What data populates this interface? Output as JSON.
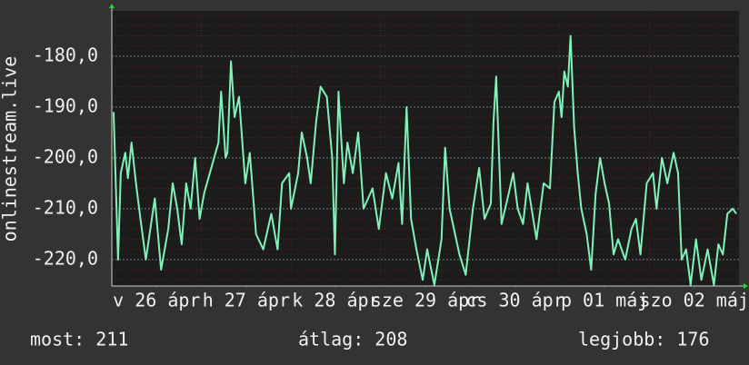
{
  "chart_data": {
    "type": "line",
    "y_label": "onlinestream.live",
    "color": "#80f2b8",
    "xlim": [
      0,
      7
    ],
    "xticks": [
      {
        "value": 0.5,
        "label": "v 26 ápr"
      },
      {
        "value": 1.5,
        "label": "h 27 ápr"
      },
      {
        "value": 2.5,
        "label": "k 28 ápr"
      },
      {
        "value": 3.5,
        "label": "sze 29 ápr"
      },
      {
        "value": 4.5,
        "label": "cs 30 ápr"
      },
      {
        "value": 5.5,
        "label": "p 01 máj"
      },
      {
        "value": 6.5,
        "label": "szo 02 máj"
      }
    ],
    "minor_xticks": [
      1,
      2,
      3,
      4,
      5,
      6
    ],
    "ylim": [
      -225.2,
      -171.1
    ],
    "yticks": [
      {
        "value": -220,
        "label": "-220,0"
      },
      {
        "value": -210,
        "label": "-210,0"
      },
      {
        "value": -200,
        "label": "-200,0"
      },
      {
        "value": -190,
        "label": "-190,0"
      },
      {
        "value": -180,
        "label": "-180,0"
      }
    ],
    "minor_yticks": [
      -224,
      -222,
      -218,
      -216,
      -214,
      -212,
      -208,
      -206,
      -204,
      -202,
      -198,
      -196,
      -194,
      -192,
      -188,
      -186,
      -184,
      -182,
      -178,
      -176,
      -174,
      -172
    ],
    "grid": true,
    "x": [
      0.02,
      0.07,
      0.1,
      0.15,
      0.18,
      0.22,
      0.27,
      0.32,
      0.38,
      0.48,
      0.55,
      0.63,
      0.68,
      0.73,
      0.78,
      0.83,
      0.88,
      0.93,
      0.98,
      1.03,
      1.11,
      1.19,
      1.22,
      1.27,
      1.29,
      1.33,
      1.37,
      1.42,
      1.49,
      1.54,
      1.61,
      1.69,
      1.78,
      1.85,
      1.9,
      1.98,
      2.0,
      2.08,
      2.12,
      2.18,
      2.22,
      2.28,
      2.33,
      2.4,
      2.46,
      2.49,
      2.53,
      2.59,
      2.63,
      2.69,
      2.75,
      2.81,
      2.91,
      2.98,
      3.06,
      3.13,
      3.2,
      3.24,
      3.29,
      3.34,
      3.4,
      3.47,
      3.52,
      3.6,
      3.68,
      3.72,
      3.77,
      3.88,
      3.95,
      4.03,
      4.1,
      4.16,
      4.23,
      4.26,
      4.29,
      4.35,
      4.43,
      4.48,
      4.53,
      4.59,
      4.64,
      4.74,
      4.82,
      4.89,
      4.94,
      4.99,
      5.02,
      5.05,
      5.09,
      5.12,
      5.16,
      5.2,
      5.24,
      5.3,
      5.35,
      5.4,
      5.45,
      5.5,
      5.55,
      5.6,
      5.65,
      5.73,
      5.8,
      5.85,
      5.9,
      5.97,
      6.04,
      6.08,
      6.14,
      6.2,
      6.27,
      6.32,
      6.36,
      6.41,
      6.46,
      6.52,
      6.58,
      6.65,
      6.72,
      6.77,
      6.82,
      6.87,
      6.93,
      6.97
    ],
    "values": [
      -191,
      -220,
      -203,
      -199,
      -204,
      -197,
      -205,
      -212,
      -220,
      -208,
      -222,
      -214,
      -205,
      -210,
      -217,
      -205,
      -210,
      -200,
      -212,
      -207,
      -202,
      -197,
      -187,
      -200,
      -199,
      -181,
      -192,
      -188,
      -205,
      -199,
      -215,
      -218,
      -211,
      -218,
      -205,
      -203,
      -210,
      -203,
      -195,
      -200,
      -205,
      -193,
      -186,
      -188,
      -200,
      -219,
      -187,
      -205,
      -197,
      -203,
      -195,
      -210,
      -206,
      -214,
      -203,
      -208,
      -201,
      -213,
      -190,
      -212,
      -218,
      -224,
      -218,
      -225,
      -216,
      -198,
      -210,
      -219,
      -223,
      -210,
      -202,
      -212,
      -209,
      -193,
      -184,
      -213,
      -207,
      -203,
      -210,
      -213,
      -205,
      -216,
      -205,
      -206,
      -189,
      -187,
      -192,
      -183,
      -186,
      -176,
      -194,
      -203,
      -210,
      -215,
      -222,
      -207,
      -200,
      -205,
      -209,
      -219,
      -216,
      -220,
      -214,
      -212,
      -219,
      -205,
      -203,
      -210,
      -200,
      -205,
      -199,
      -203,
      -220,
      -218,
      -225,
      -216,
      -224,
      -218,
      -225,
      -217,
      -219,
      -211,
      -210,
      -211
    ],
    "footer": [
      "most: 211",
      "átlag: 208",
      "legjobb: 176"
    ]
  }
}
